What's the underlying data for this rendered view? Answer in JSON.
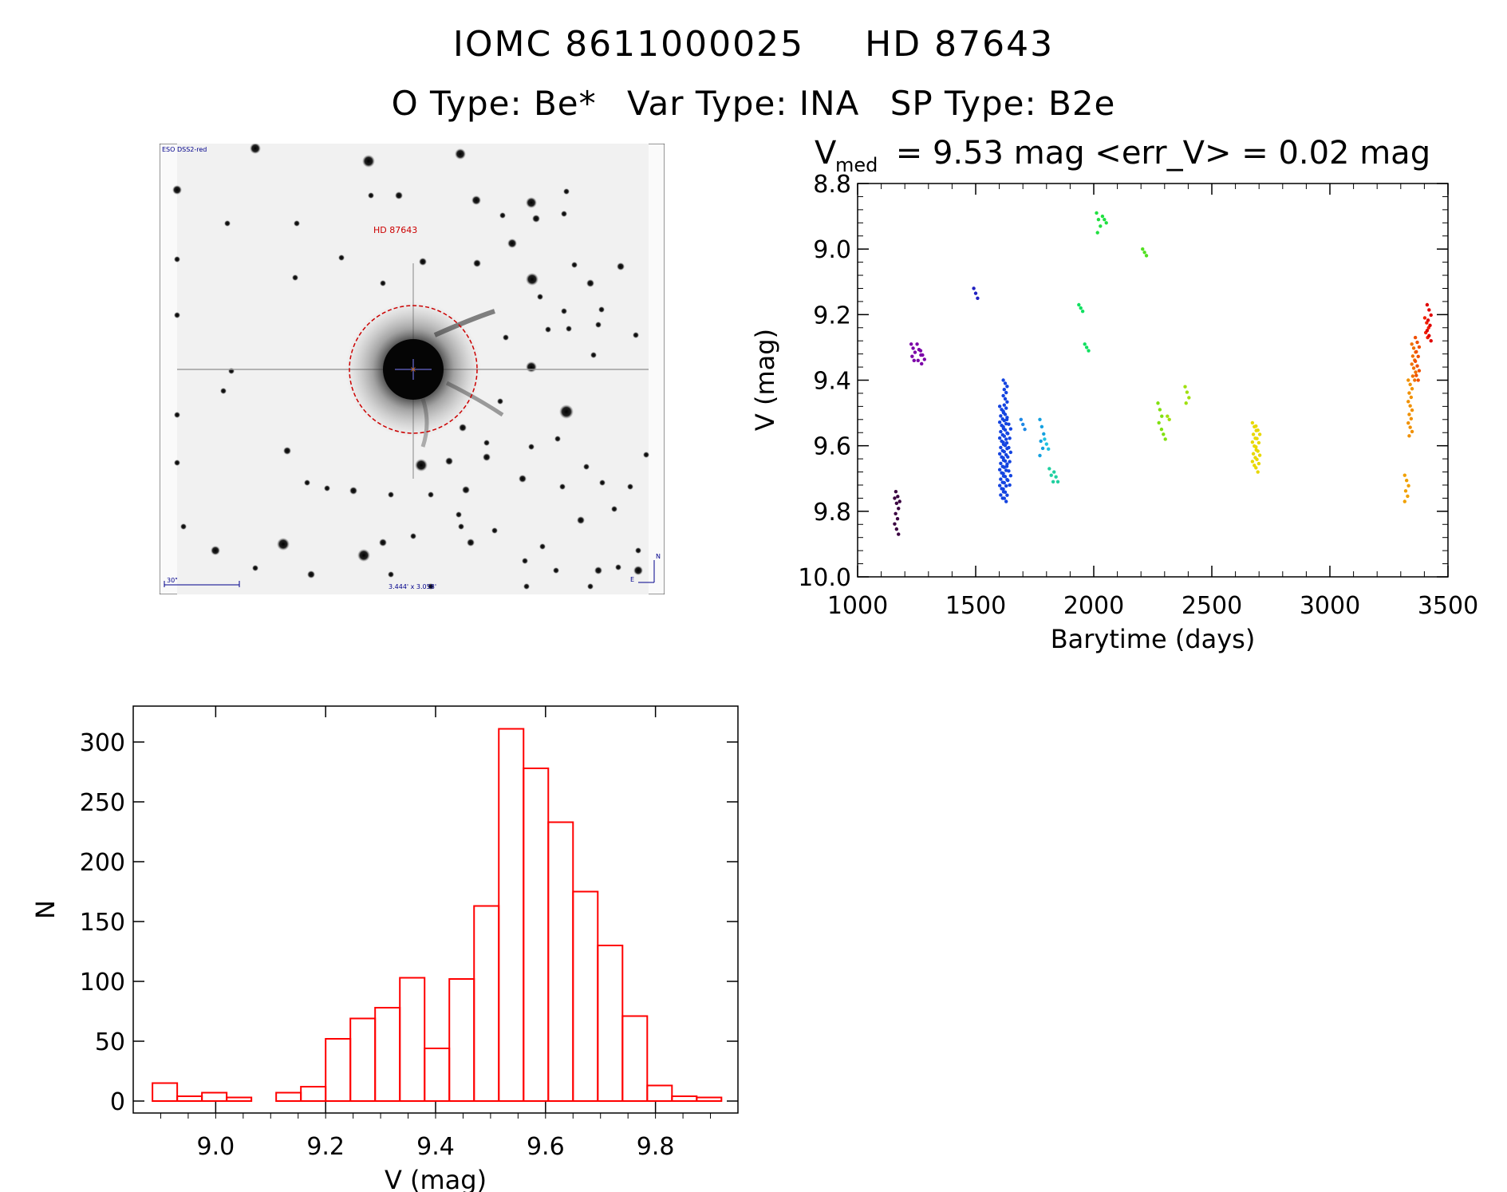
{
  "header": {
    "iomc": "IOMC 8611000025",
    "hd": "HD  87643",
    "otype": "O Type: Be*",
    "vartype": "Var Type: INA",
    "sptype": "SP Type: B2e"
  },
  "image_panel": {
    "survey_label": "ESO DSS2-red",
    "object_label": "HD 87643",
    "scale_label": "30\"",
    "fov_label": "3.444' x 3.058'",
    "north_label": "N",
    "east_label": "E",
    "colors": {
      "marker_circle": "#cc0000",
      "annotation": "#00008b"
    }
  },
  "chart_data": [
    {
      "type": "scatter",
      "title_prefix": "V",
      "title_subscript": "med",
      "title_rest": " = 9.53 mag <err_V> = 0.02 mag",
      "xlabel": "Barytime (days)",
      "ylabel": "V (mag)",
      "xlim": [
        1000,
        3500
      ],
      "ylim": [
        10.0,
        8.8
      ],
      "y_inverted": true,
      "xticks": [
        "1000",
        "1500",
        "2000",
        "2500",
        "3000",
        "3500"
      ],
      "yticks": [
        "8.8",
        "9.0",
        "9.2",
        "9.4",
        "9.6",
        "9.8",
        "10.0"
      ],
      "clusters": [
        {
          "x": 1165,
          "ymin": 9.76,
          "ymax": 9.87,
          "n": 8,
          "color": "#3a0040"
        },
        {
          "x": 1170,
          "ymin": 9.74,
          "ymax": 9.77,
          "n": 3,
          "color": "#3a0040"
        },
        {
          "x": 1235,
          "ymin": 9.29,
          "ymax": 9.34,
          "n": 5,
          "color": "#7b00a8"
        },
        {
          "x": 1260,
          "ymin": 9.29,
          "ymax": 9.34,
          "n": 4,
          "color": "#7b00a8"
        },
        {
          "x": 1275,
          "ymin": 9.31,
          "ymax": 9.35,
          "n": 4,
          "color": "#7b00a8"
        },
        {
          "x": 1500,
          "ymin": 9.12,
          "ymax": 9.15,
          "n": 3,
          "color": "#2020c0"
        },
        {
          "x": 1610,
          "ymin": 9.48,
          "ymax": 9.76,
          "n": 30,
          "color": "#1444e0"
        },
        {
          "x": 1625,
          "ymin": 9.4,
          "ymax": 9.77,
          "n": 40,
          "color": "#1444e0"
        },
        {
          "x": 1640,
          "ymin": 9.52,
          "ymax": 9.72,
          "n": 15,
          "color": "#1444e0"
        },
        {
          "x": 1700,
          "ymin": 9.52,
          "ymax": 9.55,
          "n": 3,
          "color": "#1e88e5"
        },
        {
          "x": 1780,
          "ymin": 9.52,
          "ymax": 9.63,
          "n": 6,
          "color": "#14a0e0"
        },
        {
          "x": 1800,
          "ymin": 9.58,
          "ymax": 9.61,
          "n": 3,
          "color": "#20c0e0"
        },
        {
          "x": 1820,
          "ymin": 9.67,
          "ymax": 9.71,
          "n": 3,
          "color": "#20d0a0"
        },
        {
          "x": 1840,
          "ymin": 9.68,
          "ymax": 9.71,
          "n": 3,
          "color": "#20d0a0"
        },
        {
          "x": 1945,
          "ymin": 9.17,
          "ymax": 9.19,
          "n": 3,
          "color": "#10e060"
        },
        {
          "x": 1970,
          "ymin": 9.29,
          "ymax": 9.31,
          "n": 3,
          "color": "#10e060"
        },
        {
          "x": 2020,
          "ymin": 8.89,
          "ymax": 8.95,
          "n": 4,
          "color": "#20e040"
        },
        {
          "x": 2045,
          "ymin": 8.9,
          "ymax": 8.92,
          "n": 3,
          "color": "#20e040"
        },
        {
          "x": 2215,
          "ymin": 9.0,
          "ymax": 9.02,
          "n": 3,
          "color": "#50e020"
        },
        {
          "x": 2280,
          "ymin": 9.47,
          "ymax": 9.53,
          "n": 4,
          "color": "#80e010"
        },
        {
          "x": 2295,
          "ymin": 9.55,
          "ymax": 9.58,
          "n": 3,
          "color": "#80e010"
        },
        {
          "x": 2320,
          "ymin": 9.51,
          "ymax": 9.52,
          "n": 2,
          "color": "#a0e010"
        },
        {
          "x": 2395,
          "ymin": 9.42,
          "ymax": 9.47,
          "n": 4,
          "color": "#a0e010"
        },
        {
          "x": 2680,
          "ymin": 9.53,
          "ymax": 9.66,
          "n": 12,
          "color": "#e8d800"
        },
        {
          "x": 2695,
          "ymin": 9.54,
          "ymax": 9.68,
          "n": 12,
          "color": "#e8d800"
        },
        {
          "x": 3325,
          "ymin": 9.69,
          "ymax": 9.77,
          "n": 6,
          "color": "#f0a000"
        },
        {
          "x": 3340,
          "ymin": 9.4,
          "ymax": 9.57,
          "n": 14,
          "color": "#f09000"
        },
        {
          "x": 3355,
          "ymin": 9.29,
          "ymax": 9.4,
          "n": 10,
          "color": "#f07000"
        },
        {
          "x": 3370,
          "ymin": 9.27,
          "ymax": 9.4,
          "n": 10,
          "color": "#f05000"
        },
        {
          "x": 3410,
          "ymin": 9.21,
          "ymax": 9.27,
          "n": 5,
          "color": "#f02000"
        },
        {
          "x": 3420,
          "ymin": 9.17,
          "ymax": 9.28,
          "n": 8,
          "color": "#e00000"
        }
      ]
    },
    {
      "type": "bar",
      "subtype": "histogram",
      "xlabel": "V (mag)",
      "ylabel": "N",
      "xlim": [
        8.85,
        9.95
      ],
      "ylim": [
        -10,
        330
      ],
      "xticks": [
        "9.0",
        "9.2",
        "9.4",
        "9.6",
        "9.8"
      ],
      "yticks": [
        "0",
        "50",
        "100",
        "150",
        "200",
        "250",
        "300"
      ],
      "bin_width": 0.045,
      "bin_start": 8.885,
      "values": [
        15,
        4,
        7,
        3,
        0,
        7,
        12,
        52,
        69,
        78,
        103,
        44,
        102,
        163,
        311,
        278,
        233,
        175,
        130,
        71,
        13,
        4,
        3
      ],
      "color": "#ff0000"
    }
  ]
}
